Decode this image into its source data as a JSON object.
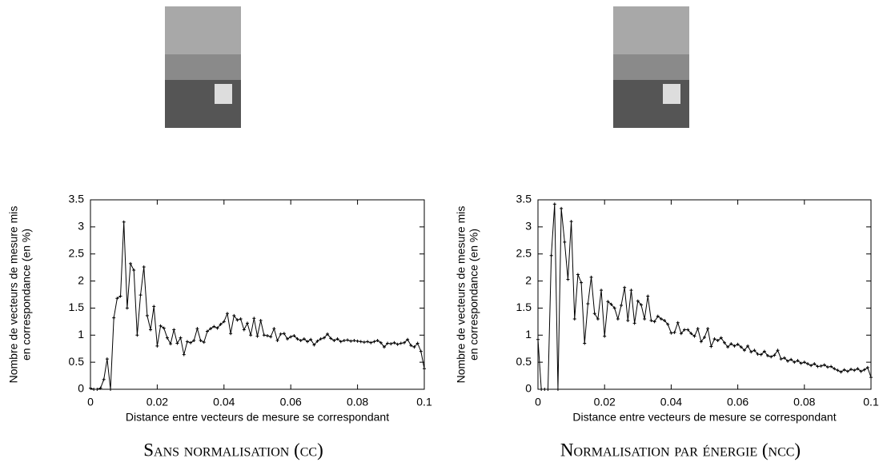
{
  "chart_data": [
    {
      "type": "line",
      "caption": "Sans normalisation (cc)",
      "xlabel": "Distance entre vecteurs de mesure se correspondant",
      "ylabel": [
        "Nombre de vecteurs de mesure mis",
        "en correspondance (en %)"
      ],
      "xlim": [
        0,
        0.1
      ],
      "ylim": [
        0,
        3.5
      ],
      "xticks": [
        0,
        0.02,
        0.04,
        0.06,
        0.08,
        0.1
      ],
      "yticks": [
        0,
        0.5,
        1,
        1.5,
        2,
        2.5,
        3,
        3.5
      ],
      "x": [
        0,
        0.001,
        0.002,
        0.003,
        0.004,
        0.005,
        0.006,
        0.007,
        0.008,
        0.009,
        0.01,
        0.011,
        0.012,
        0.013,
        0.014,
        0.015,
        0.016,
        0.017,
        0.018,
        0.019,
        0.02,
        0.021,
        0.022,
        0.023,
        0.024,
        0.025,
        0.026,
        0.027,
        0.028,
        0.029,
        0.03,
        0.031,
        0.032,
        0.033,
        0.034,
        0.035,
        0.036,
        0.037,
        0.038,
        0.039,
        0.04,
        0.041,
        0.042,
        0.043,
        0.044,
        0.045,
        0.046,
        0.047,
        0.048,
        0.049,
        0.05,
        0.051,
        0.052,
        0.053,
        0.054,
        0.055,
        0.056,
        0.057,
        0.058,
        0.059,
        0.06,
        0.061,
        0.062,
        0.063,
        0.064,
        0.065,
        0.066,
        0.067,
        0.068,
        0.069,
        0.07,
        0.071,
        0.072,
        0.073,
        0.074,
        0.075,
        0.076,
        0.077,
        0.078,
        0.079,
        0.08,
        0.081,
        0.082,
        0.083,
        0.084,
        0.085,
        0.086,
        0.087,
        0.088,
        0.089,
        0.09,
        0.091,
        0.092,
        0.093,
        0.094,
        0.095,
        0.096,
        0.097,
        0.098,
        0.099,
        0.1
      ],
      "color": "#000000",
      "values": [
        0.02,
        0,
        0,
        0.02,
        0.18,
        0.56,
        0,
        1.32,
        1.68,
        1.72,
        3.09,
        1.5,
        2.32,
        2.2,
        1.0,
        1.74,
        2.26,
        1.36,
        1.1,
        1.53,
        0.8,
        1.17,
        1.13,
        0.95,
        0.84,
        1.1,
        0.85,
        0.95,
        0.64,
        0.88,
        0.86,
        0.9,
        1.12,
        0.9,
        0.87,
        1.07,
        1.12,
        1.16,
        1.13,
        1.2,
        1.25,
        1.4,
        1.03,
        1.36,
        1.28,
        1.3,
        1.1,
        1.22,
        1.0,
        1.31,
        0.98,
        1.27,
        1.0,
        0.99,
        0.97,
        1.12,
        0.9,
        1.02,
        1.03,
        0.93,
        0.97,
        0.99,
        0.93,
        0.9,
        0.93,
        0.88,
        0.92,
        0.82,
        0.89,
        0.93,
        0.95,
        1.02,
        0.94,
        0.9,
        0.93,
        0.88,
        0.9,
        0.91,
        0.89,
        0.9,
        0.89,
        0.88,
        0.87,
        0.88,
        0.86,
        0.88,
        0.9,
        0.86,
        0.78,
        0.85,
        0.84,
        0.86,
        0.83,
        0.85,
        0.86,
        0.92,
        0.81,
        0.78,
        0.85,
        0.7,
        0.38
      ]
    },
    {
      "type": "line",
      "caption": "Normalisation par énergie (ncc)",
      "xlabel": "Distance entre vecteurs de mesure se correspondant",
      "ylabel": [
        "Nombre de vecteurs de mesure mis",
        "en correspondance (en %)"
      ],
      "xlim": [
        0,
        0.1
      ],
      "ylim": [
        0,
        3.5
      ],
      "xticks": [
        0,
        0.02,
        0.04,
        0.06,
        0.08,
        0.1
      ],
      "yticks": [
        0,
        0.5,
        1,
        1.5,
        2,
        2.5,
        3,
        3.5
      ],
      "x": [
        0,
        0.001,
        0.002,
        0.003,
        0.004,
        0.005,
        0.006,
        0.007,
        0.008,
        0.009,
        0.01,
        0.011,
        0.012,
        0.013,
        0.014,
        0.015,
        0.016,
        0.017,
        0.018,
        0.019,
        0.02,
        0.021,
        0.022,
        0.023,
        0.024,
        0.025,
        0.026,
        0.027,
        0.028,
        0.029,
        0.03,
        0.031,
        0.032,
        0.033,
        0.034,
        0.035,
        0.036,
        0.037,
        0.038,
        0.039,
        0.04,
        0.041,
        0.042,
        0.043,
        0.044,
        0.045,
        0.046,
        0.047,
        0.048,
        0.049,
        0.05,
        0.051,
        0.052,
        0.053,
        0.054,
        0.055,
        0.056,
        0.057,
        0.058,
        0.059,
        0.06,
        0.061,
        0.062,
        0.063,
        0.064,
        0.065,
        0.066,
        0.067,
        0.068,
        0.069,
        0.07,
        0.071,
        0.072,
        0.073,
        0.074,
        0.075,
        0.076,
        0.077,
        0.078,
        0.079,
        0.08,
        0.081,
        0.082,
        0.083,
        0.084,
        0.085,
        0.086,
        0.087,
        0.088,
        0.089,
        0.09,
        0.091,
        0.092,
        0.093,
        0.094,
        0.095,
        0.096,
        0.097,
        0.098,
        0.099,
        0.1
      ],
      "color": "#000000",
      "values": [
        0.92,
        0,
        0,
        0,
        2.47,
        3.42,
        0,
        3.34,
        2.72,
        2.03,
        3.1,
        1.3,
        2.12,
        1.97,
        0.85,
        1.58,
        2.07,
        1.4,
        1.3,
        1.83,
        0.98,
        1.62,
        1.57,
        1.5,
        1.3,
        1.55,
        1.88,
        1.27,
        1.83,
        1.22,
        1.63,
        1.56,
        1.3,
        1.72,
        1.27,
        1.25,
        1.35,
        1.3,
        1.27,
        1.2,
        1.04,
        1.05,
        1.23,
        1.03,
        1.1,
        1.1,
        1.03,
        0.98,
        1.12,
        0.88,
        0.96,
        1.12,
        0.79,
        0.93,
        0.9,
        0.95,
        0.86,
        0.78,
        0.84,
        0.8,
        0.83,
        0.78,
        0.72,
        0.8,
        0.69,
        0.72,
        0.65,
        0.64,
        0.7,
        0.62,
        0.6,
        0.63,
        0.72,
        0.56,
        0.58,
        0.52,
        0.55,
        0.5,
        0.53,
        0.48,
        0.5,
        0.47,
        0.44,
        0.47,
        0.42,
        0.43,
        0.45,
        0.41,
        0.42,
        0.38,
        0.35,
        0.32,
        0.36,
        0.33,
        0.37,
        0.35,
        0.38,
        0.33,
        0.36,
        0.4,
        0.22
      ]
    }
  ]
}
